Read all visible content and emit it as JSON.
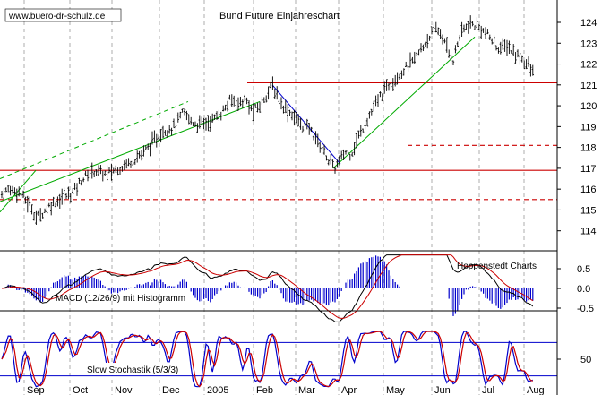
{
  "chart_data": [
    {
      "type": "ohlc-bar",
      "title": "Bund Future Einjahreschart",
      "watermark": "www.buero-dr-schulz.de",
      "source": "Hoppenstedt Charts",
      "ylim": [
        113.5,
        124.5
      ],
      "y_ticks": [
        "114",
        "115",
        "116",
        "117",
        "118",
        "119",
        "120",
        "121",
        "122",
        "123",
        "124"
      ],
      "x_labels": [
        "Sep",
        "Oct",
        "Nov",
        "Dec",
        "2005",
        "Feb",
        "Mar",
        "Apr",
        "May",
        "Jun",
        "Jul",
        "Aug"
      ],
      "price_path": [
        [
          0,
          115.7
        ],
        [
          10,
          116.0
        ],
        [
          20,
          115.9
        ],
        [
          30,
          115.4
        ],
        [
          35,
          115.2
        ],
        [
          40,
          114.6
        ],
        [
          48,
          114.9
        ],
        [
          58,
          115.3
        ],
        [
          70,
          115.6
        ],
        [
          80,
          115.8
        ],
        [
          92,
          116.5
        ],
        [
          105,
          116.9
        ],
        [
          118,
          116.7
        ],
        [
          132,
          117.0
        ],
        [
          145,
          117.3
        ],
        [
          158,
          117.7
        ],
        [
          170,
          118.2
        ],
        [
          182,
          118.8
        ],
        [
          195,
          119.0
        ],
        [
          205,
          119.7
        ],
        [
          212,
          119.3
        ],
        [
          220,
          119.1
        ],
        [
          232,
          119.2
        ],
        [
          240,
          119.4
        ],
        [
          250,
          119.8
        ],
        [
          258,
          120.3
        ],
        [
          266,
          120.1
        ],
        [
          274,
          120.3
        ],
        [
          282,
          119.7
        ],
        [
          290,
          120.0
        ],
        [
          298,
          120.6
        ],
        [
          304,
          121.0
        ],
        [
          310,
          120.4
        ],
        [
          318,
          119.9
        ],
        [
          326,
          119.6
        ],
        [
          336,
          119.1
        ],
        [
          346,
          118.9
        ],
        [
          356,
          118.2
        ],
        [
          362,
          117.8
        ],
        [
          368,
          117.3
        ],
        [
          374,
          117.0
        ],
        [
          380,
          117.4
        ],
        [
          386,
          117.8
        ],
        [
          392,
          117.7
        ],
        [
          400,
          118.5
        ],
        [
          408,
          119.2
        ],
        [
          416,
          119.8
        ],
        [
          424,
          120.4
        ],
        [
          432,
          120.9
        ],
        [
          440,
          121.3
        ],
        [
          448,
          121.6
        ],
        [
          456,
          121.9
        ],
        [
          464,
          122.3
        ],
        [
          472,
          122.8
        ],
        [
          480,
          123.4
        ],
        [
          488,
          123.7
        ],
        [
          494,
          123.3
        ],
        [
          500,
          122.6
        ],
        [
          506,
          122.2
        ],
        [
          512,
          123.2
        ],
        [
          518,
          123.7
        ],
        [
          526,
          123.9
        ],
        [
          534,
          123.8
        ],
        [
          542,
          123.5
        ],
        [
          550,
          123.1
        ],
        [
          558,
          122.7
        ],
        [
          566,
          122.9
        ],
        [
          574,
          122.5
        ],
        [
          582,
          122.3
        ],
        [
          590,
          121.9
        ],
        [
          597,
          121.4
        ]
      ],
      "horizontal_lines": [
        {
          "y": 121.1,
          "style": "solid",
          "color": "#cc0000",
          "x_from": 276
        },
        {
          "y": 118.1,
          "style": "dashed",
          "color": "#cc0000",
          "x_from": 455
        },
        {
          "y": 116.9,
          "style": "solid",
          "color": "#cc0000",
          "x_from": 0
        },
        {
          "y": 116.2,
          "style": "solid",
          "color": "#cc0000",
          "x_from": 0
        },
        {
          "y": 115.5,
          "style": "dashed",
          "color": "#cc0000",
          "x_from": 0
        }
      ],
      "trend_lines": [
        {
          "from": [
            0,
            115.4
          ],
          "to": [
            290,
            120.2
          ],
          "color": "#00aa00",
          "style": "solid"
        },
        {
          "from": [
            0,
            116.5
          ],
          "to": [
            210,
            120.2
          ],
          "color": "#00aa00",
          "style": "dashed"
        },
        {
          "from": [
            0,
            114.9
          ],
          "to": [
            40,
            116.9
          ],
          "color": "#00aa00",
          "style": "solid"
        },
        {
          "from": [
            372,
            117.0
          ],
          "to": [
            530,
            123.3
          ],
          "color": "#00aa00",
          "style": "solid"
        },
        {
          "from": [
            304,
            121.0
          ],
          "to": [
            380,
            117.2
          ],
          "color": "#0000cc",
          "style": "solid"
        }
      ]
    },
    {
      "type": "line+histogram",
      "label": "MACD (12/26/9) mit Histogramm",
      "ylim": [
        -0.9,
        0.9
      ],
      "y_ticks": [
        "0.5",
        "0.0",
        "-0.5"
      ]
    },
    {
      "type": "line",
      "label": "Slow Stochastik (5/3/3)",
      "ylim": [
        0,
        100
      ],
      "y_ticks": [
        "50"
      ],
      "levels": [
        80,
        20
      ]
    }
  ],
  "colors": {
    "price": "#000000",
    "macd": "#000000",
    "signal": "#cc0000",
    "histogram": "#0000cc",
    "stoch_k": "#0000cc",
    "stoch_d": "#cc0000",
    "grid": "#999999",
    "level_line": "#0000cc"
  }
}
